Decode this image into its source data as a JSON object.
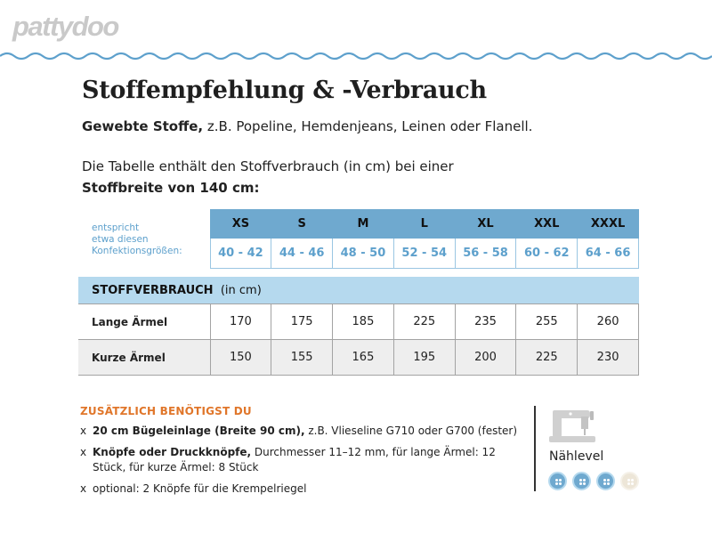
{
  "brand": {
    "logo_text": "pattydoo",
    "logo_color": "#c9c9c9",
    "wave_color": "#5da0cc"
  },
  "title": "Stoffempfehlung & -Verbrauch",
  "fabric": {
    "label": "Gewebte Stoffe,",
    "text": " z.B. Popeline, Hemdenjeans, Leinen oder Flanell."
  },
  "intro": {
    "line1": "Die Tabelle enthält den Stoffverbrauch (in cm) bei einer",
    "line2": "Stoffbreite von 140 cm:"
  },
  "size_table": {
    "corner_lines": [
      "entspricht",
      "etwa diesen",
      "Konfektionsgrößen:"
    ],
    "sizes": [
      "XS",
      "S",
      "M",
      "L",
      "XL",
      "XXL",
      "XXXL"
    ],
    "ranges": [
      "40 - 42",
      "44 - 46",
      "48 - 50",
      "52 - 54",
      "56 - 58",
      "60 - 62",
      "64 - 66"
    ]
  },
  "usage": {
    "header_bold": "STOFFVERBRAUCH",
    "header_unit": "(in cm)",
    "rows": [
      {
        "label": "Lange Ärmel",
        "values": [
          "170",
          "175",
          "185",
          "225",
          "235",
          "255",
          "260"
        ]
      },
      {
        "label": "Kurze Ärmel",
        "values": [
          "150",
          "155",
          "165",
          "195",
          "200",
          "225",
          "230"
        ]
      }
    ]
  },
  "extras": {
    "title": "ZUSÄTZLICH BENÖTIGST DU",
    "bullet": "x",
    "items": [
      {
        "bold": "20 cm Bügeleinlage (Breite 90 cm),",
        "text": " z.B. Vlieseline G710 oder G700 (fester)"
      },
      {
        "bold": "Knöpfe oder Druckknöpfe,",
        "text": " Durchmesser 11–12 mm, für lange Ärmel: 12 Stück, für kurze Ärmel: 8 Stück"
      },
      {
        "bold": "",
        "text": "optional: 2 Knöpfe für die Krempelriegel"
      }
    ]
  },
  "level": {
    "label": "Nählevel",
    "value": 3,
    "max": 4,
    "icon": "sewing-machine-icon",
    "on_color": "#6fa9cf",
    "off_color": "#ede6d8"
  }
}
